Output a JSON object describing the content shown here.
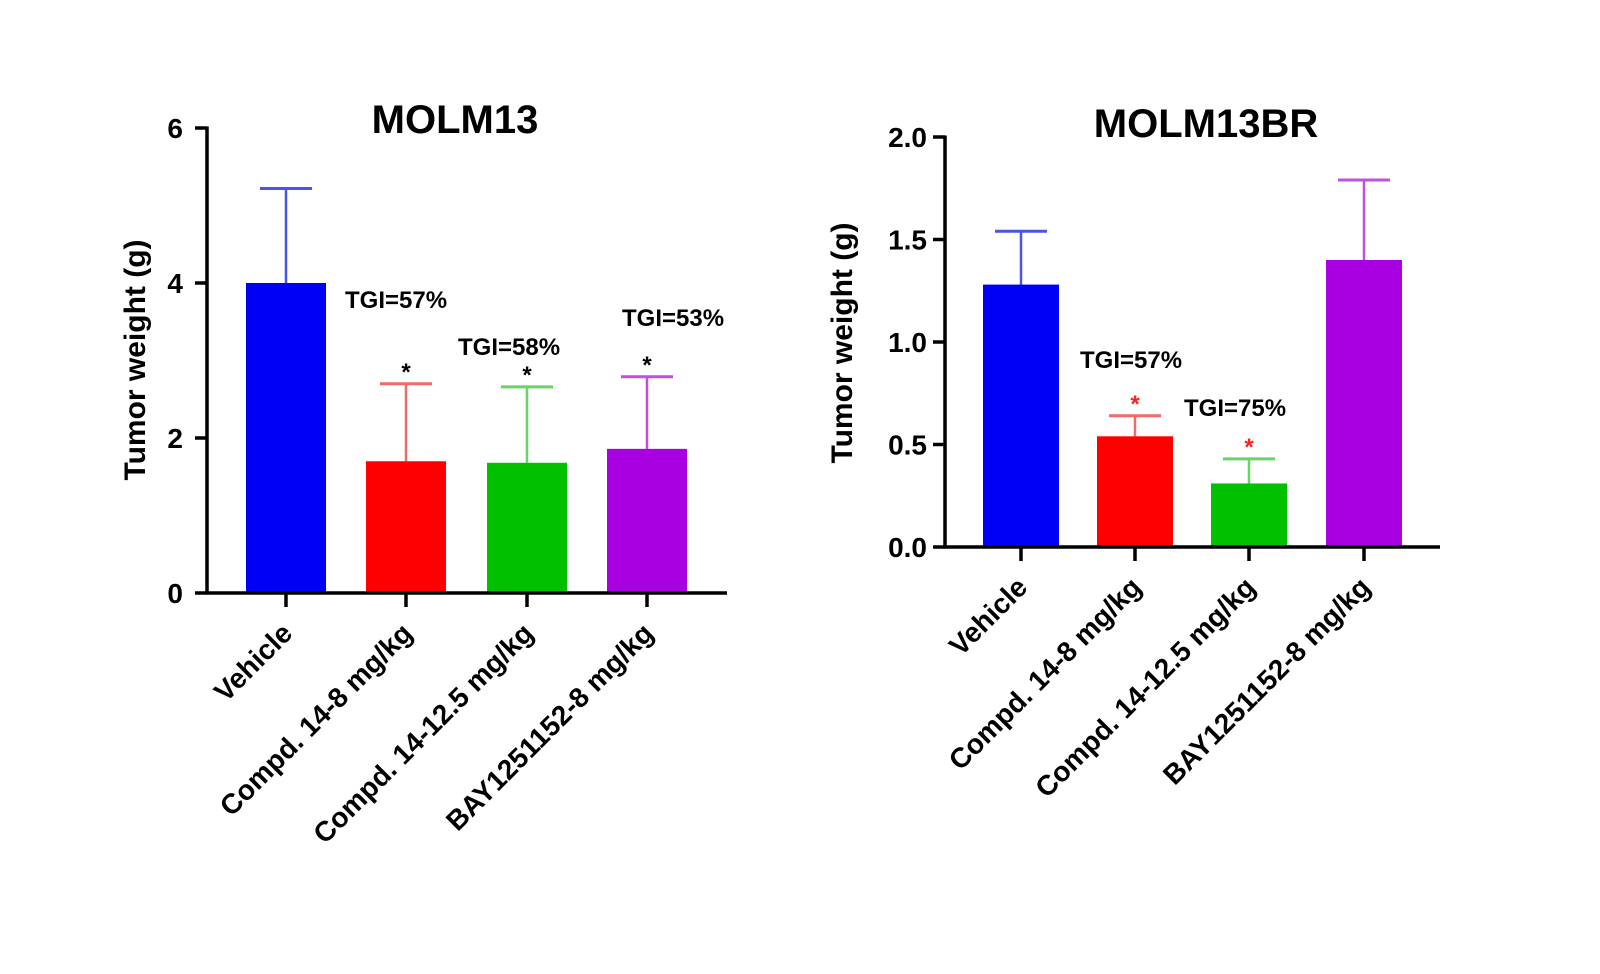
{
  "chart_data": [
    {
      "type": "bar",
      "title": "MOLM13",
      "xlabel": "",
      "ylabel": "Tumor weight (g)",
      "ylim": [
        0,
        6
      ],
      "yticks": [
        "0",
        "2",
        "4",
        "6"
      ],
      "ytick_values": [
        0,
        2,
        4,
        6
      ],
      "grid": false,
      "categories": [
        "Vehicle",
        "Compd. 14-8 mg/kg",
        "Compd. 14-12.5 mg/kg",
        "BAY1251152-8 mg/kg"
      ],
      "values": [
        4.0,
        1.7,
        1.68,
        1.86
      ],
      "error_upper": [
        5.22,
        2.7,
        2.66,
        2.79
      ],
      "colors": [
        "#0000f5",
        "#ff0000",
        "#00c000",
        "#a800e0"
      ],
      "error_colors": [
        "#4a55e8",
        "#f06a6a",
        "#66d466",
        "#c050e0"
      ],
      "significance": [
        "",
        "*",
        "*",
        "*"
      ],
      "significance_color": "#000000",
      "annotations": [
        "TGI=57%",
        "TGI=58%",
        "TGI=53%"
      ]
    },
    {
      "type": "bar",
      "title": "MOLM13BR",
      "xlabel": "",
      "ylabel": "Tumor weight (g)",
      "ylim": [
        0,
        2.0
      ],
      "yticks": [
        "0.0",
        "0.5",
        "1.0",
        "1.5",
        "2.0"
      ],
      "ytick_values": [
        0,
        0.5,
        1.0,
        1.5,
        2.0
      ],
      "grid": false,
      "categories": [
        "Vehicle",
        "Compd. 14-8 mg/kg",
        "Compd. 14-12.5 mg/kg",
        "BAY1251152-8 mg/kg"
      ],
      "values": [
        1.28,
        0.54,
        0.31,
        1.4
      ],
      "error_upper": [
        1.54,
        0.64,
        0.43,
        1.79
      ],
      "colors": [
        "#0000f5",
        "#ff0000",
        "#00c000",
        "#a800e0"
      ],
      "error_colors": [
        "#4a55e8",
        "#f06a6a",
        "#66d466",
        "#c050e0"
      ],
      "significance": [
        "",
        "*",
        "*",
        ""
      ],
      "significance_color": "#ff2020",
      "annotations": [
        "TGI=57%",
        "TGI=75%"
      ]
    }
  ]
}
